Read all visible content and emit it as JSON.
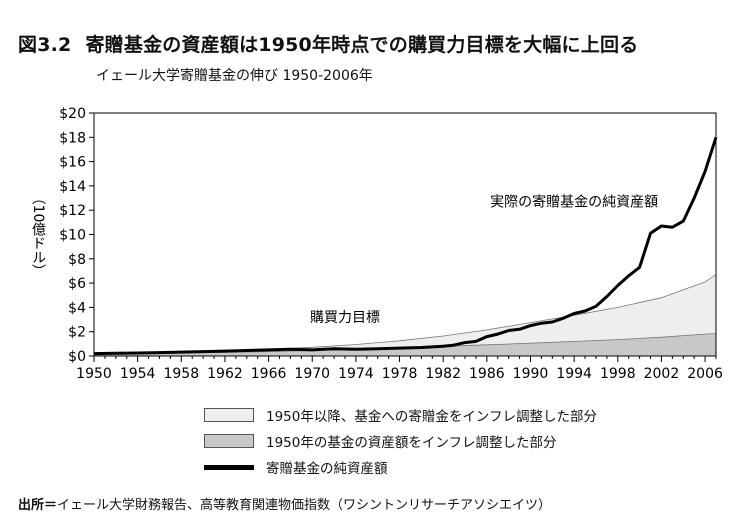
{
  "figure": {
    "number": "図3.2",
    "title": "寄贈基金の資産額は1950年時点での購買力目標を大幅に上回る",
    "subtitle": "イェール大学寄贈基金の伸び 1950-2006年",
    "source_label": "出所＝",
    "source_text": "イェール大学財務報告、高等教育関連物価指数（ワシントンリサーチアソシエイツ）"
  },
  "chart_data": {
    "type": "area",
    "ylabel": "（10億ドル）",
    "xlim": [
      1950,
      2007
    ],
    "ylim": [
      0,
      20
    ],
    "x_ticks": [
      1950,
      1954,
      1958,
      1962,
      1966,
      1970,
      1974,
      1978,
      1982,
      1986,
      1990,
      1994,
      1998,
      2002,
      2006
    ],
    "x_tick_labels": [
      "1950",
      "1954",
      "1958",
      "1962",
      "1966",
      "1970",
      "1974",
      "1978",
      "1982",
      "1986",
      "1990",
      "1994",
      "1998",
      "2002",
      "2006"
    ],
    "y_ticks": [
      0,
      2,
      4,
      6,
      8,
      10,
      12,
      14,
      16,
      18,
      20
    ],
    "y_tick_labels": [
      "$0",
      "$2",
      "$4",
      "$6",
      "$8",
      "$10",
      "$12",
      "$14",
      "$16",
      "$18",
      "$20"
    ],
    "grid": false,
    "legend_position": "bottom",
    "annotations": [
      {
        "text": "実際の寄贈基金の純資産額",
        "x": 1994,
        "y": 12.3
      },
      {
        "text": "購買力目標",
        "x": 1973,
        "y": 2.8
      }
    ],
    "series": [
      {
        "name": "1950年以降、基金への寄贈金をインフレ調整した部分",
        "kind": "area",
        "color": "#eeeeee",
        "x": [
          1950,
          1954,
          1958,
          1962,
          1966,
          1970,
          1974,
          1978,
          1982,
          1986,
          1990,
          1994,
          1998,
          2002,
          2006,
          2007
        ],
        "values": [
          0.25,
          0.28,
          0.33,
          0.42,
          0.55,
          0.72,
          0.95,
          1.25,
          1.65,
          2.15,
          2.75,
          3.35,
          4.0,
          4.8,
          6.1,
          6.7
        ]
      },
      {
        "name": "1950年の基金の資産額をインフレ調整した部分",
        "kind": "area",
        "color": "#c8c8c8",
        "x": [
          1950,
          1954,
          1958,
          1962,
          1966,
          1970,
          1974,
          1978,
          1982,
          1986,
          1990,
          1994,
          1998,
          2002,
          2006,
          2007
        ],
        "values": [
          0.2,
          0.22,
          0.25,
          0.3,
          0.36,
          0.45,
          0.55,
          0.68,
          0.8,
          0.92,
          1.05,
          1.2,
          1.35,
          1.55,
          1.8,
          1.85
        ]
      },
      {
        "name": "寄贈基金の純資産額",
        "kind": "line",
        "color": "#000000",
        "x": [
          1950,
          1952,
          1954,
          1956,
          1958,
          1960,
          1962,
          1964,
          1966,
          1968,
          1970,
          1972,
          1974,
          1976,
          1978,
          1980,
          1982,
          1983,
          1984,
          1985,
          1986,
          1987,
          1988,
          1989,
          1990,
          1991,
          1992,
          1993,
          1994,
          1995,
          1996,
          1997,
          1998,
          1999,
          2000,
          2001,
          2002,
          2003,
          2004,
          2005,
          2006,
          2007
        ],
        "values": [
          0.2,
          0.22,
          0.25,
          0.28,
          0.32,
          0.36,
          0.4,
          0.45,
          0.5,
          0.55,
          0.5,
          0.6,
          0.55,
          0.6,
          0.65,
          0.7,
          0.8,
          0.9,
          1.1,
          1.2,
          1.6,
          1.8,
          2.1,
          2.2,
          2.5,
          2.7,
          2.8,
          3.1,
          3.5,
          3.7,
          4.1,
          4.9,
          5.8,
          6.6,
          7.3,
          10.1,
          10.7,
          10.6,
          11.1,
          13.0,
          15.2,
          18.0
        ]
      }
    ]
  }
}
